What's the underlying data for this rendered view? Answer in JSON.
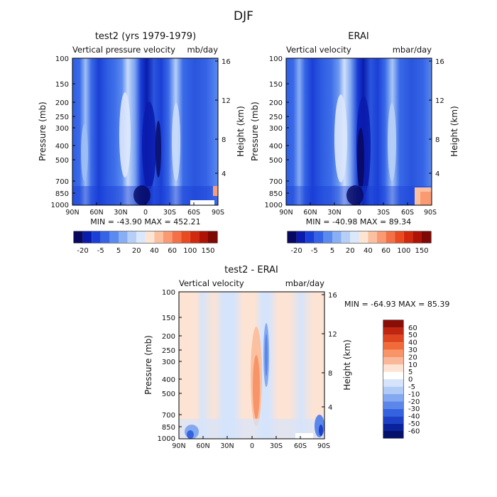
{
  "page_title": "DJF",
  "chart_data": [
    {
      "type": "heatmap",
      "title": "test2 (yrs 1979-1979)",
      "subtitle_left": "Vertical pressure velocity",
      "subtitle_right": "mb/day",
      "ylabel": "Pressure (mb)",
      "ylabel_right": "Height (km)",
      "x_ticks": [
        "90N",
        "60N",
        "30N",
        "0",
        "30S",
        "60S",
        "90S"
      ],
      "y_ticks": [
        "100",
        "150",
        "200",
        "250",
        "300",
        "400",
        "500",
        "700",
        "850",
        "1000"
      ],
      "y_ticks_right": [
        "16",
        "12",
        "8",
        "4"
      ],
      "min_max": "MIN = -43.90   MAX = 452.21",
      "colorbar_labels": [
        "-20",
        "-5",
        "5",
        "20",
        "40",
        "60",
        "100",
        "150"
      ],
      "colors": [
        "#08085e",
        "#0a1cad",
        "#1a3fd6",
        "#3563e6",
        "#5a8af0",
        "#88aef3",
        "#b6cff6",
        "#dbe7fb",
        "#fde5d4",
        "#fbc0a0",
        "#f99a73",
        "#f47046",
        "#e84a22",
        "#d1290e",
        "#ae1307",
        "#7e0804"
      ]
    },
    {
      "type": "heatmap",
      "title": "ERAI",
      "subtitle_left": "Vertical velocity",
      "subtitle_right": "mbar/day",
      "ylabel": "Pressure (mb)",
      "ylabel_right": "Height (km)",
      "x_ticks": [
        "90N",
        "60N",
        "30N",
        "0",
        "30S",
        "60S",
        "90S"
      ],
      "y_ticks": [
        "100",
        "150",
        "200",
        "250",
        "300",
        "400",
        "500",
        "700",
        "850",
        "1000"
      ],
      "y_ticks_right": [
        "16",
        "12",
        "8",
        "4"
      ],
      "min_max": "MIN = -40.98   MAX =  89.34",
      "colorbar_labels": [
        "-20",
        "-5",
        "5",
        "20",
        "40",
        "60",
        "100",
        "150"
      ],
      "colors": [
        "#08085e",
        "#0a1cad",
        "#1a3fd6",
        "#3563e6",
        "#5a8af0",
        "#88aef3",
        "#b6cff6",
        "#dbe7fb",
        "#fde5d4",
        "#fbc0a0",
        "#f99a73",
        "#f47046",
        "#e84a22",
        "#d1290e",
        "#ae1307",
        "#7e0804"
      ]
    },
    {
      "type": "heatmap",
      "title": "test2 - ERAI",
      "subtitle_left": "Vertical velocity",
      "subtitle_right": "mbar/day",
      "ylabel": "Pressure (mb)",
      "ylabel_right": "Height (km)",
      "x_ticks": [
        "90N",
        "60N",
        "30N",
        "0",
        "30S",
        "60S",
        "90S"
      ],
      "y_ticks": [
        "100",
        "150",
        "200",
        "250",
        "300",
        "400",
        "500",
        "700",
        "850",
        "1000"
      ],
      "y_ticks_right": [
        "16",
        "12",
        "8",
        "4"
      ],
      "min_max": "MIN = -64.93   MAX =  85.39",
      "colorbar_labels": [
        "60",
        "50",
        "40",
        "30",
        "20",
        "10",
        "5",
        "0",
        "-5",
        "-10",
        "-20",
        "-30",
        "-40",
        "-50",
        "-60"
      ],
      "colors": [
        "#8b0d08",
        "#c0260f",
        "#e04522",
        "#f26a3a",
        "#f79569",
        "#fab89a",
        "#fde3d3",
        "#ffffff",
        "#d6e4fb",
        "#b0cbf6",
        "#85a9f0",
        "#5b86ea",
        "#3563e0",
        "#1c40c8",
        "#0a229c",
        "#04106a"
      ]
    }
  ]
}
